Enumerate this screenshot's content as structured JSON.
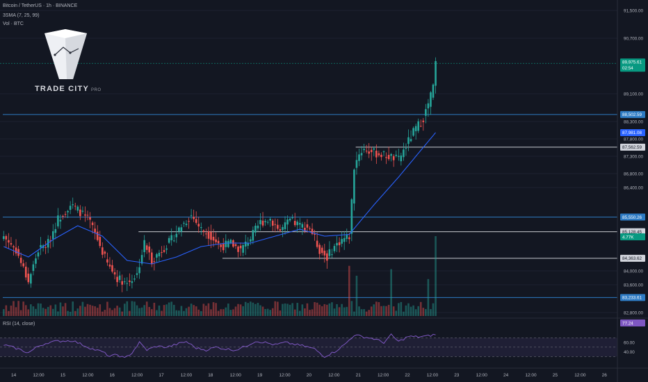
{
  "header": {
    "symbol_line": "Bitcoin / TetherUS · 1h · BINANCE",
    "sma_line": "3SMA (7, 25, 99)",
    "vol_line": "Vol · BTC"
  },
  "logo": {
    "brand": "TRADE CITY",
    "suffix": "PRO"
  },
  "colors": {
    "background": "#131722",
    "up": "#26a69a",
    "down": "#ef5350",
    "sma": "#2962ff",
    "level_blue": "#2e7bc4",
    "level_white": "#c9cbd1",
    "rsi": "#7e57c2",
    "price_label": "#089981"
  },
  "chart_data": {
    "type": "candlestick",
    "symbol": "Bitcoin / TetherUS",
    "interval": "1h",
    "exchange": "BINANCE",
    "price_axis": {
      "ticks": [
        "91,500.00",
        "90,700.00",
        "89,100.00",
        "88,300.00",
        "87,800.00",
        "87,300.00",
        "86,800.00",
        "86,400.00",
        "84,000.00",
        "83,600.00",
        "82,800.00"
      ],
      "range": [
        82700,
        91800
      ]
    },
    "time_axis": {
      "ticks": [
        "14",
        "12:00",
        "15",
        "12:00",
        "16",
        "12:00",
        "17",
        "12:00",
        "18",
        "12:00",
        "19",
        "12:00",
        "20",
        "12:00",
        "21",
        "12:00",
        "22",
        "12:00",
        "23",
        "12:00",
        "24",
        "12:00",
        "25",
        "12:00",
        "26"
      ]
    },
    "price_waypoints": [
      [
        0,
        85000
      ],
      [
        5,
        84600
      ],
      [
        10,
        83700
      ],
      [
        14,
        84600
      ],
      [
        18,
        84800
      ],
      [
        22,
        85500
      ],
      [
        27,
        85900
      ],
      [
        31,
        85700
      ],
      [
        35,
        85400
      ],
      [
        38,
        84900
      ],
      [
        42,
        84200
      ],
      [
        46,
        83800
      ],
      [
        50,
        83650
      ],
      [
        54,
        83900
      ],
      [
        57,
        84800
      ],
      [
        60,
        84300
      ],
      [
        64,
        84600
      ],
      [
        68,
        84900
      ],
      [
        72,
        85300
      ],
      [
        76,
        85600
      ],
      [
        80,
        85200
      ],
      [
        84,
        85000
      ],
      [
        88,
        84700
      ],
      [
        92,
        84800
      ],
      [
        96,
        84600
      ],
      [
        100,
        84950
      ],
      [
        104,
        85400
      ],
      [
        108,
        85500
      ],
      [
        112,
        85150
      ],
      [
        116,
        85450
      ],
      [
        120,
        85300
      ],
      [
        124,
        85250
      ],
      [
        128,
        84600
      ],
      [
        131,
        84400
      ],
      [
        134,
        84700
      ],
      [
        137,
        84900
      ],
      [
        140,
        85000
      ],
      [
        142,
        87000
      ],
      [
        144,
        87400
      ],
      [
        146,
        87500
      ],
      [
        150,
        87400
      ],
      [
        153,
        87350
      ],
      [
        156,
        87300
      ],
      [
        160,
        87200
      ],
      [
        163,
        87600
      ],
      [
        166,
        88000
      ],
      [
        170,
        88400
      ],
      [
        172,
        88800
      ],
      [
        174,
        89300
      ],
      [
        175,
        89975
      ]
    ],
    "sma": [
      [
        0,
        84700
      ],
      [
        10,
        84400
      ],
      [
        20,
        84900
      ],
      [
        30,
        85300
      ],
      [
        40,
        85000
      ],
      [
        50,
        84300
      ],
      [
        60,
        84200
      ],
      [
        70,
        84400
      ],
      [
        80,
        84700
      ],
      [
        90,
        84800
      ],
      [
        100,
        84800
      ],
      [
        110,
        85000
      ],
      [
        120,
        85200
      ],
      [
        130,
        85000
      ],
      [
        140,
        85050
      ],
      [
        150,
        85900
      ],
      [
        160,
        86700
      ],
      [
        167,
        87300
      ],
      [
        175,
        87981
      ]
    ],
    "volume": {
      "label": "4.77K",
      "spikes": [
        [
          140,
          0.55
        ],
        [
          143,
          0.4
        ],
        [
          157,
          0.5
        ],
        [
          172,
          0.35
        ],
        [
          175,
          1.0
        ]
      ]
    },
    "levels": [
      {
        "price": 88502.59,
        "label": "88,502.59",
        "color": "#2e7bc4",
        "x_start_bar": 0
      },
      {
        "price": 85550.26,
        "label": "85,550.26",
        "color": "#2e7bc4",
        "x_start_bar": 0
      },
      {
        "price": 83233.61,
        "label": "83,233.61",
        "color": "#2e7bc4",
        "x_start_bar": 0
      },
      {
        "price": 87562.59,
        "label": "87,562.59",
        "color": "#c9cbd1",
        "x_start_bar": 143
      },
      {
        "price": 85128.45,
        "label": "85,128.45",
        "color": "#c9cbd1",
        "x_start_bar": 55
      },
      {
        "price": 84363.62,
        "label": "84,363.62",
        "color": "#c9cbd1",
        "x_start_bar": 89
      }
    ],
    "last_price": {
      "value": 89975.61,
      "label": "89,975.61",
      "countdown": "02:54"
    },
    "sma_label": "87,981.08",
    "rsi": {
      "title": "RSI (14, close)",
      "value_label": "77.24",
      "ticks": [
        "60.00",
        "40.00"
      ],
      "range": [
        20,
        90
      ],
      "band": [
        30,
        70
      ],
      "waypoints": [
        [
          0,
          55
        ],
        [
          6,
          46
        ],
        [
          10,
          38
        ],
        [
          14,
          52
        ],
        [
          18,
          60
        ],
        [
          22,
          63
        ],
        [
          28,
          64
        ],
        [
          32,
          55
        ],
        [
          36,
          46
        ],
        [
          40,
          40
        ],
        [
          43,
          30
        ],
        [
          46,
          34
        ],
        [
          49,
          26
        ],
        [
          52,
          38
        ],
        [
          55,
          60
        ],
        [
          58,
          44
        ],
        [
          62,
          52
        ],
        [
          66,
          50
        ],
        [
          70,
          56
        ],
        [
          74,
          62
        ],
        [
          78,
          48
        ],
        [
          82,
          44
        ],
        [
          86,
          50
        ],
        [
          90,
          46
        ],
        [
          94,
          44
        ],
        [
          98,
          52
        ],
        [
          102,
          63
        ],
        [
          106,
          60
        ],
        [
          110,
          55
        ],
        [
          114,
          60
        ],
        [
          118,
          56
        ],
        [
          122,
          52
        ],
        [
          126,
          46
        ],
        [
          130,
          30
        ],
        [
          134,
          40
        ],
        [
          138,
          55
        ],
        [
          142,
          76
        ],
        [
          146,
          72
        ],
        [
          150,
          68
        ],
        [
          154,
          60
        ],
        [
          157,
          76
        ],
        [
          160,
          62
        ],
        [
          164,
          73
        ],
        [
          168,
          72
        ],
        [
          172,
          74
        ],
        [
          175,
          77.24
        ]
      ]
    }
  }
}
